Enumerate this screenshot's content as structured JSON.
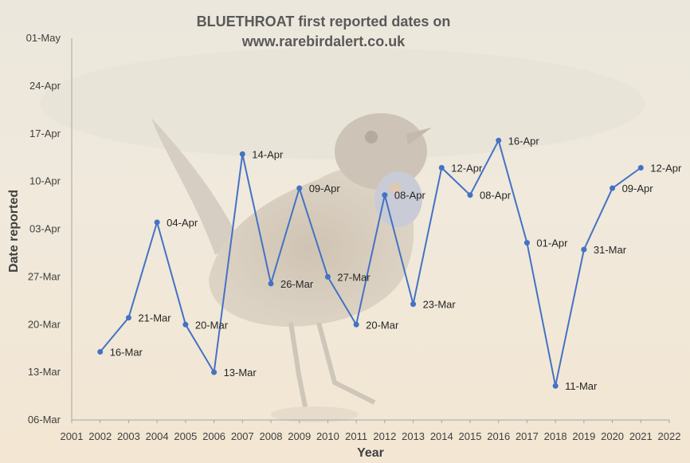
{
  "chart_data": {
    "type": "line",
    "title_line1": "BLUETHROAT first reported dates on",
    "title_line2": "www.rarebirdalert.co.uk",
    "xlabel": "Year",
    "ylabel": "Date reported",
    "x_ticks": [
      "2001",
      "2002",
      "2003",
      "2004",
      "2005",
      "2006",
      "2007",
      "2008",
      "2009",
      "2010",
      "2011",
      "2012",
      "2013",
      "2014",
      "2015",
      "2016",
      "2017",
      "2018",
      "2019",
      "2020",
      "2021",
      "2022"
    ],
    "y_ticks": [
      "06-Mar",
      "13-Mar",
      "20-Mar",
      "27-Mar",
      "03-Apr",
      "10-Apr",
      "17-Apr",
      "24-Apr",
      "01-May"
    ],
    "xlim": [
      2001,
      2022
    ],
    "ylim": [
      "06-Mar",
      "01-May"
    ],
    "grid": false,
    "line_color": "#4472C4",
    "background": "photo of a bluethroat bird, faded",
    "points": [
      {
        "x": 2002,
        "y": "16-Mar"
      },
      {
        "x": 2003,
        "y": "21-Mar"
      },
      {
        "x": 2004,
        "y": "04-Apr"
      },
      {
        "x": 2005,
        "y": "20-Mar"
      },
      {
        "x": 2006,
        "y": "13-Mar"
      },
      {
        "x": 2007,
        "y": "14-Apr"
      },
      {
        "x": 2008,
        "y": "26-Mar"
      },
      {
        "x": 2009,
        "y": "09-Apr"
      },
      {
        "x": 2010,
        "y": "27-Mar"
      },
      {
        "x": 2011,
        "y": "20-Mar"
      },
      {
        "x": 2012,
        "y": "08-Apr"
      },
      {
        "x": 2013,
        "y": "23-Mar"
      },
      {
        "x": 2014,
        "y": "12-Apr"
      },
      {
        "x": 2015,
        "y": "08-Apr"
      },
      {
        "x": 2016,
        "y": "16-Apr"
      },
      {
        "x": 2017,
        "y": "01-Apr"
      },
      {
        "x": 2018,
        "y": "11-Mar"
      },
      {
        "x": 2019,
        "y": "31-Mar"
      },
      {
        "x": 2020,
        "y": "09-Apr"
      },
      {
        "x": 2021,
        "y": "12-Apr"
      }
    ]
  }
}
